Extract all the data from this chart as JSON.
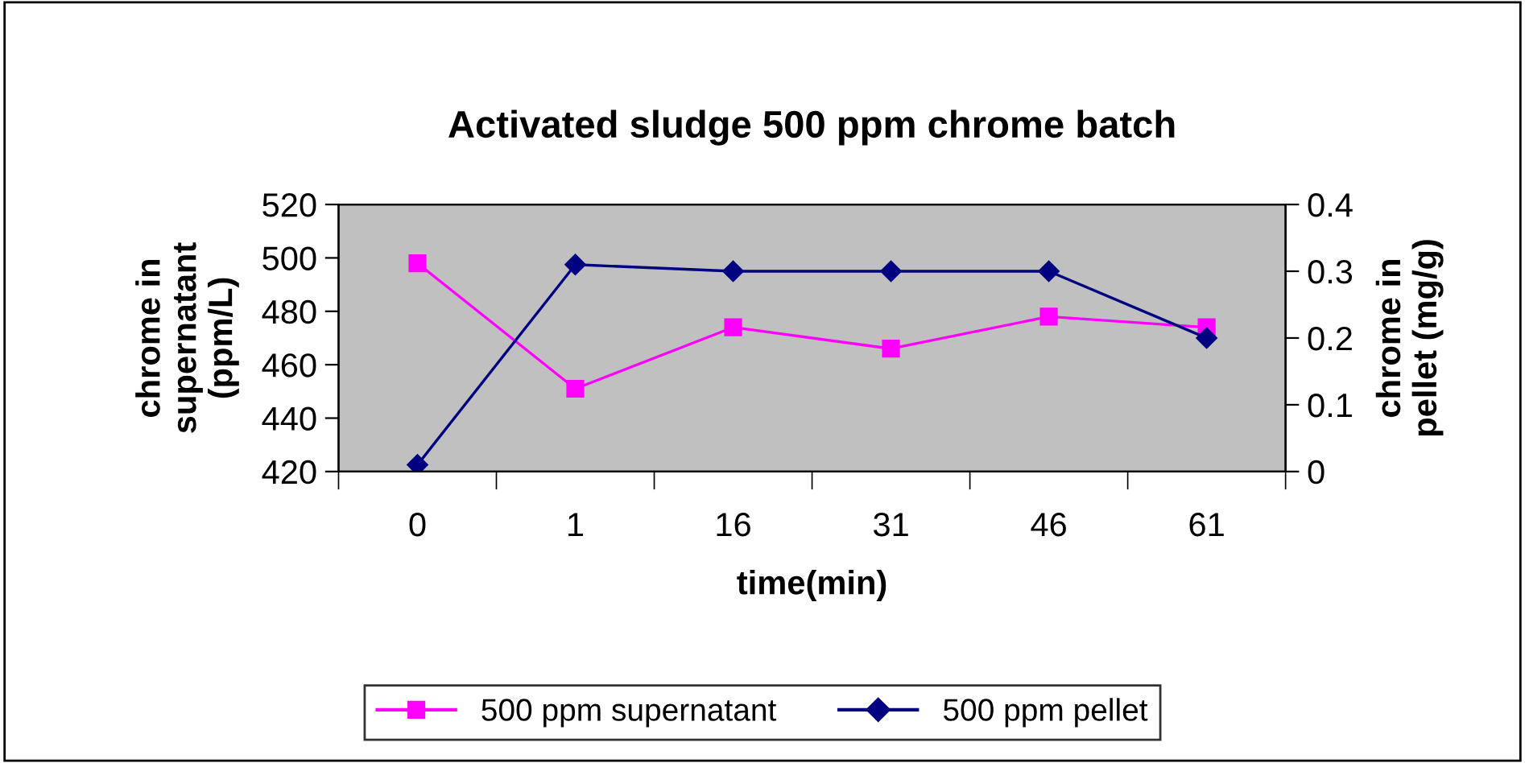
{
  "chart_data": {
    "type": "line",
    "title": "Activated sludge 500 ppm chrome batch",
    "xlabel": "time(min)",
    "ylabel": "chrome in\nsupernatant\n(ppm/L)",
    "y2label": "chrome in\npellet (mg/g)",
    "categories": [
      "0",
      "1",
      "16",
      "31",
      "46",
      "61"
    ],
    "series": [
      {
        "name": "500 ppm supernatant",
        "color": "#ff00ff",
        "marker": "square",
        "values": [
          498,
          451,
          474,
          466,
          478,
          474
        ]
      },
      {
        "name": "500 ppm pellet",
        "color": "#000080",
        "marker": "diamond",
        "axis": "y2",
        "values": [
          0.01,
          0.31,
          0.3,
          0.3,
          0.3,
          0.2
        ]
      }
    ],
    "ylim": [
      420,
      520
    ],
    "yticks": [
      420,
      440,
      460,
      480,
      500,
      520
    ],
    "y2lim": [
      0,
      0.4
    ],
    "y2ticks": [
      0,
      0.1,
      0.2,
      0.3,
      0.4
    ],
    "grid": false,
    "legend": "bottom",
    "line_style": "solid"
  }
}
